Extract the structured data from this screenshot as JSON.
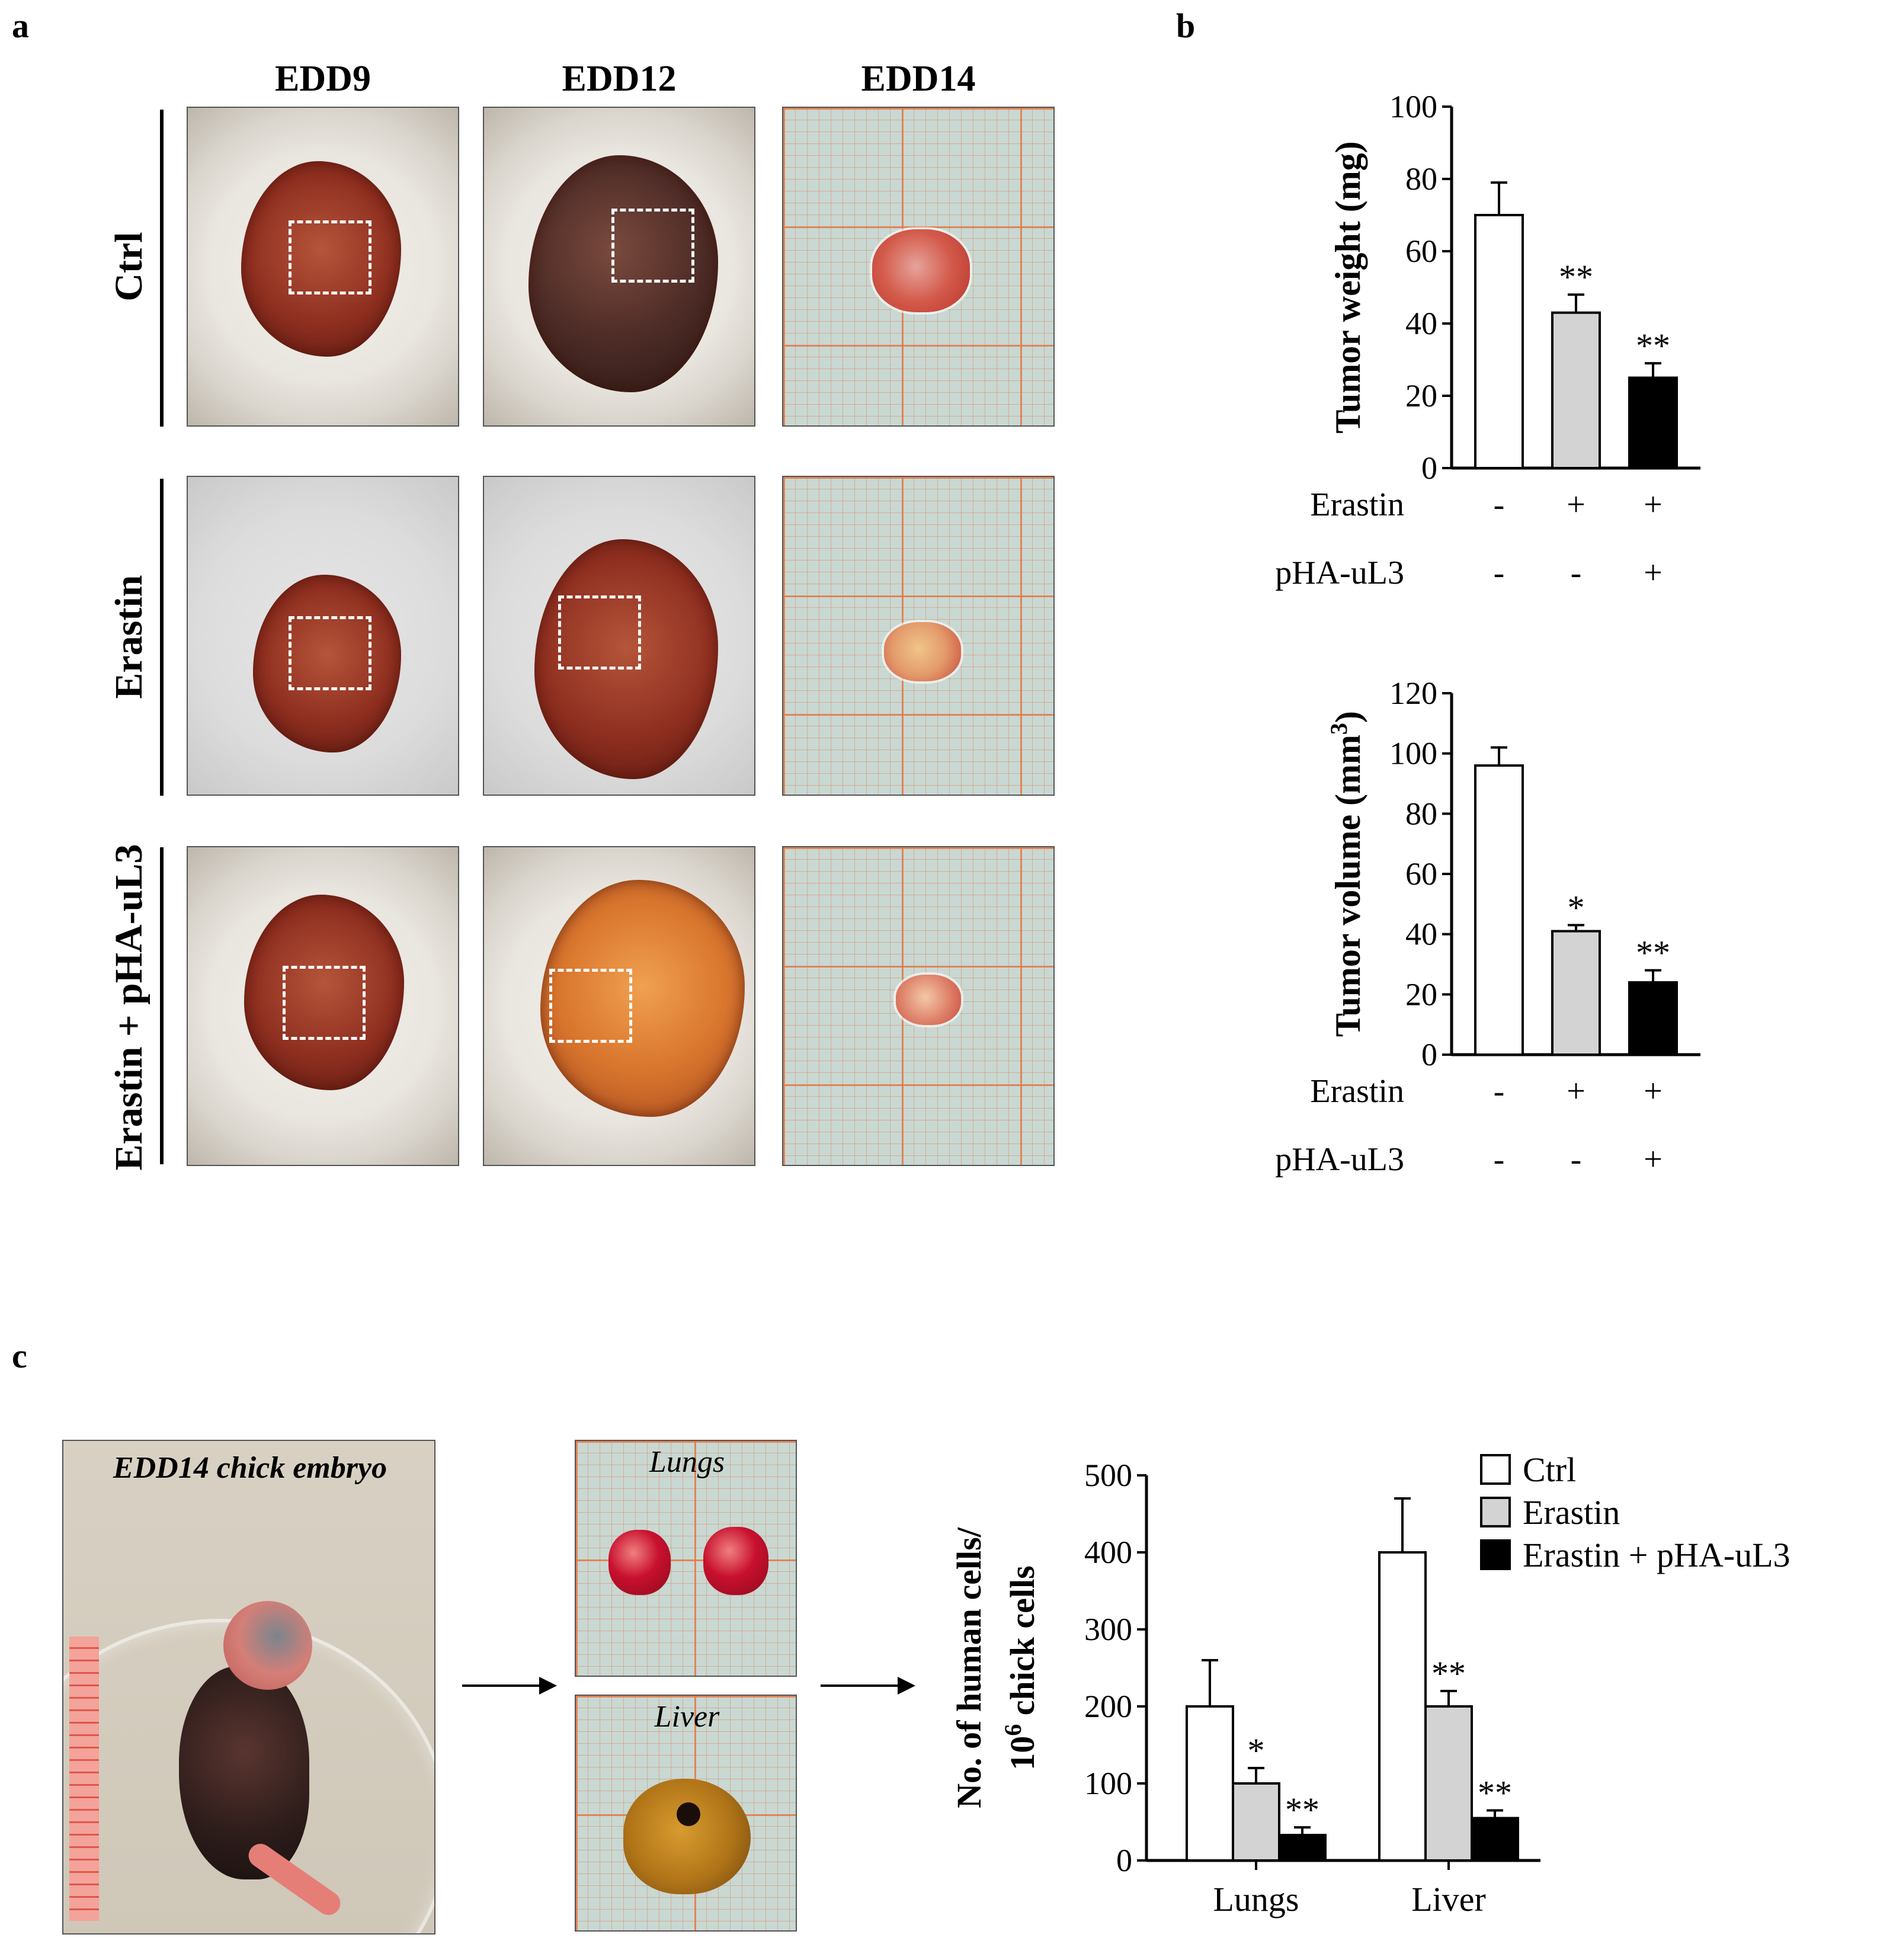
{
  "panels": {
    "a": "a",
    "b": "b",
    "c": "c"
  },
  "panel_a": {
    "columns": [
      "EDD9",
      "EDD12",
      "EDD14"
    ],
    "rows": [
      "Ctrl",
      "Erastin",
      "Erastin + pHA-uL3"
    ]
  },
  "panel_c": {
    "photo_caption": "EDD14 chick embryo",
    "organ_lungs": "Lungs",
    "organ_liver": "Liver"
  },
  "colors": {
    "ctrl": "#ffffff",
    "erastin": "#d3d3d3",
    "erastin_pha": "#000000"
  },
  "chart_data": [
    {
      "type": "bar",
      "ylabel": "Tumor weight (mg)",
      "ylim": [
        0,
        100
      ],
      "yticks": [
        0,
        20,
        40,
        60,
        80,
        100
      ],
      "series": [
        {
          "values": [
            70,
            43,
            25
          ],
          "errors": [
            9,
            5,
            4
          ],
          "significance": [
            "",
            "**",
            "**"
          ]
        }
      ],
      "conditions": [
        {
          "label": "Erastin",
          "marks": [
            "-",
            "+",
            "+"
          ]
        },
        {
          "label": "pHA-uL3",
          "marks": [
            "-",
            "-",
            "+"
          ]
        }
      ]
    },
    {
      "type": "bar",
      "ylabel": "Tumor volume (mm3)",
      "ylim": [
        0,
        120
      ],
      "yticks": [
        0,
        20,
        40,
        60,
        80,
        100,
        120
      ],
      "series": [
        {
          "values": [
            96,
            41,
            24
          ],
          "errors": [
            6,
            2,
            4
          ],
          "significance": [
            "",
            "*",
            "**"
          ]
        }
      ],
      "conditions": [
        {
          "label": "Erastin",
          "marks": [
            "-",
            "+",
            "+"
          ]
        },
        {
          "label": "pHA-uL3",
          "marks": [
            "-",
            "-",
            "+"
          ]
        }
      ]
    },
    {
      "type": "bar",
      "ylabel_line1": "No. of human cells/",
      "ylabel_line2": "10",
      "ylabel_sup": "6",
      "ylabel_line2_rest": " chick cells",
      "ylim": [
        0,
        500
      ],
      "yticks": [
        0,
        100,
        200,
        300,
        400,
        500
      ],
      "categories": [
        "Lungs",
        "Liver"
      ],
      "series": [
        {
          "name": "Ctrl",
          "values": [
            200,
            400
          ],
          "errors": [
            60,
            70
          ],
          "significance": [
            "",
            ""
          ]
        },
        {
          "name": "Erastin",
          "values": [
            100,
            200
          ],
          "errors": [
            20,
            20
          ],
          "significance": [
            "*",
            "**"
          ]
        },
        {
          "name": "Erastin + pHA-uL3",
          "values": [
            33,
            55
          ],
          "errors": [
            10,
            10
          ],
          "significance": [
            "**",
            "**"
          ]
        }
      ],
      "legend": "top-right"
    }
  ]
}
